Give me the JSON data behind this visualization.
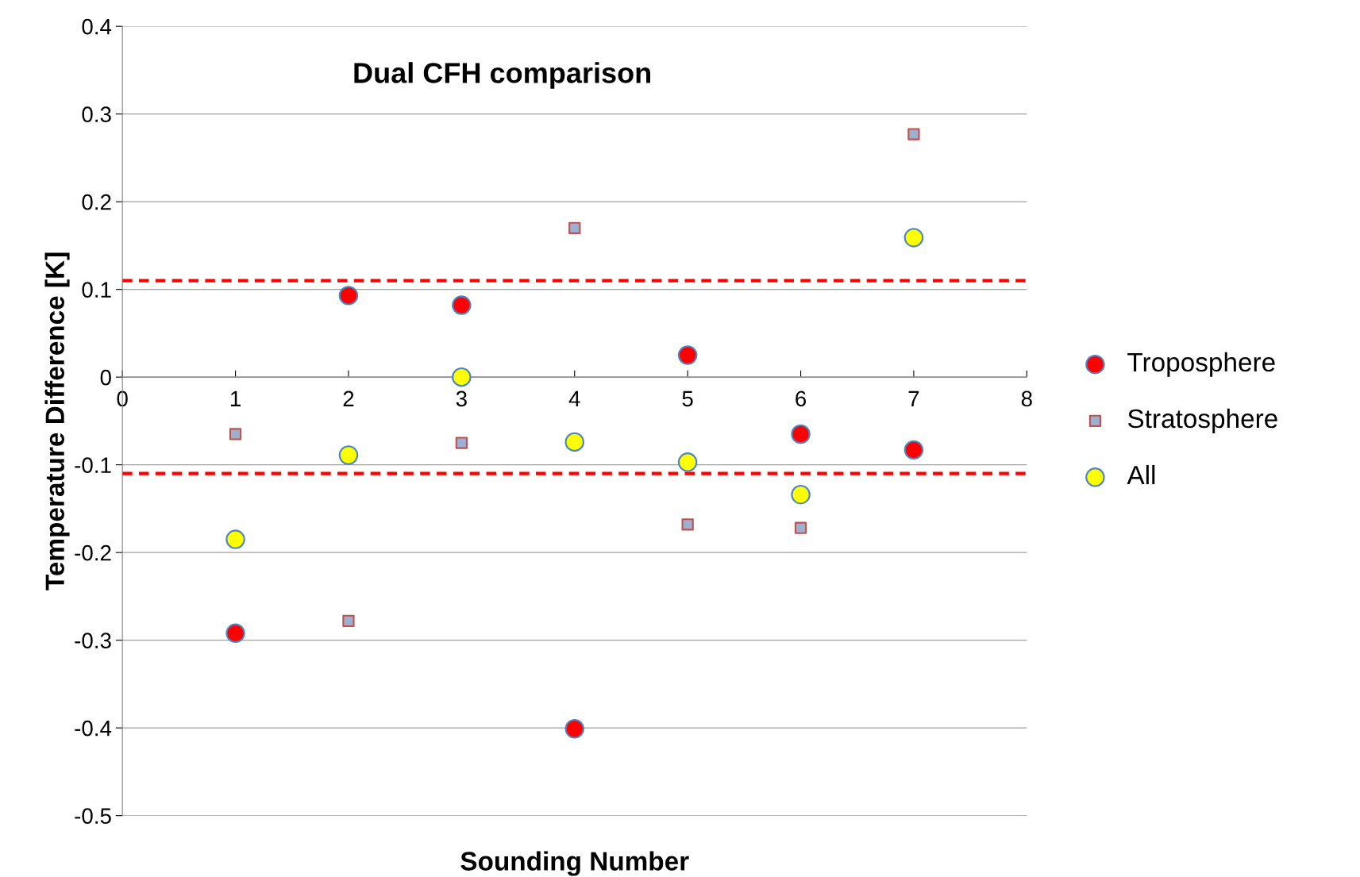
{
  "chart_data": {
    "type": "scatter",
    "title": "Dual CFH comparison",
    "xlabel": "Sounding Number",
    "ylabel": "Temperature Difference [K]",
    "x": [
      1,
      2,
      3,
      4,
      5,
      6,
      7
    ],
    "series": [
      {
        "name": "Troposphere",
        "color": "#ff0000",
        "marker": "circle",
        "values": [
          -0.292,
          0.093,
          0.082,
          -0.401,
          0.025,
          -0.065,
          -0.083
        ]
      },
      {
        "name": "Stratosphere",
        "color": "#9db0d0",
        "marker": "square",
        "values": [
          -0.065,
          -0.278,
          -0.075,
          0.17,
          -0.168,
          -0.172,
          0.277
        ]
      },
      {
        "name": "All",
        "color": "#ffff00",
        "marker": "circle",
        "values": [
          -0.185,
          -0.089,
          0.0,
          -0.074,
          -0.097,
          -0.134,
          0.159
        ]
      }
    ],
    "xlim": [
      0,
      8
    ],
    "xticks": [
      0,
      1,
      2,
      3,
      4,
      5,
      6,
      7,
      8
    ],
    "ylim": [
      -0.5,
      0.4
    ],
    "yticks": [
      -0.5,
      -0.4,
      -0.3,
      -0.2,
      -0.1,
      0,
      0.1,
      0.2,
      0.3,
      0.4
    ],
    "ref_lines": [
      {
        "axis": "y",
        "value": 0.11,
        "color": "#ff0000",
        "line_style": "dashed"
      },
      {
        "axis": "y",
        "value": -0.11,
        "color": "#ff0000",
        "line_style": "dashed"
      }
    ],
    "grid": "y",
    "legend": "right"
  }
}
